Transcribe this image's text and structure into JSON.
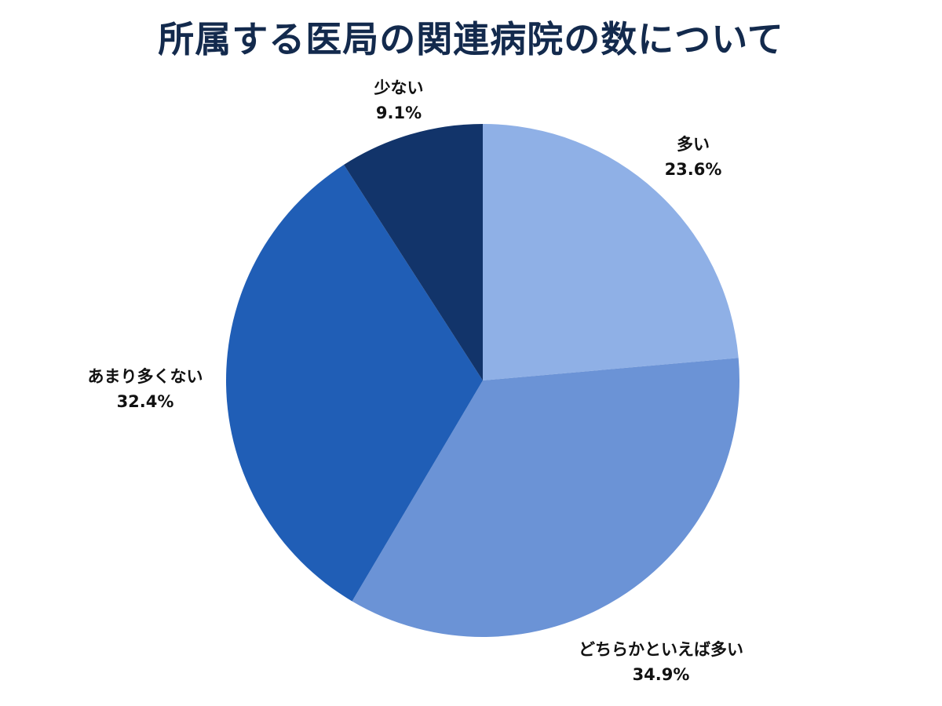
{
  "title": "所属する医局の関連病院の数について",
  "chart_data": {
    "type": "pie",
    "title": "所属する医局の関連病院の数について",
    "start_angle_deg": 0,
    "direction": "clockwise",
    "categories": [
      "多い",
      "どちらかといえば多い",
      "あまり多くない",
      "少ない"
    ],
    "values": [
      23.6,
      34.9,
      32.4,
      9.1
    ],
    "unit": "%",
    "colors": [
      "#8fb0e6",
      "#6b93d6",
      "#205eb6",
      "#12346a"
    ],
    "labels": [
      {
        "name": "多い",
        "value": "23.6%"
      },
      {
        "name": "どちらかといえば多い",
        "value": "34.9%"
      },
      {
        "name": "あまり多くない",
        "value": "32.4%"
      },
      {
        "name": "少ない",
        "value": "9.1%"
      }
    ],
    "legend": "none (direct labels)"
  }
}
